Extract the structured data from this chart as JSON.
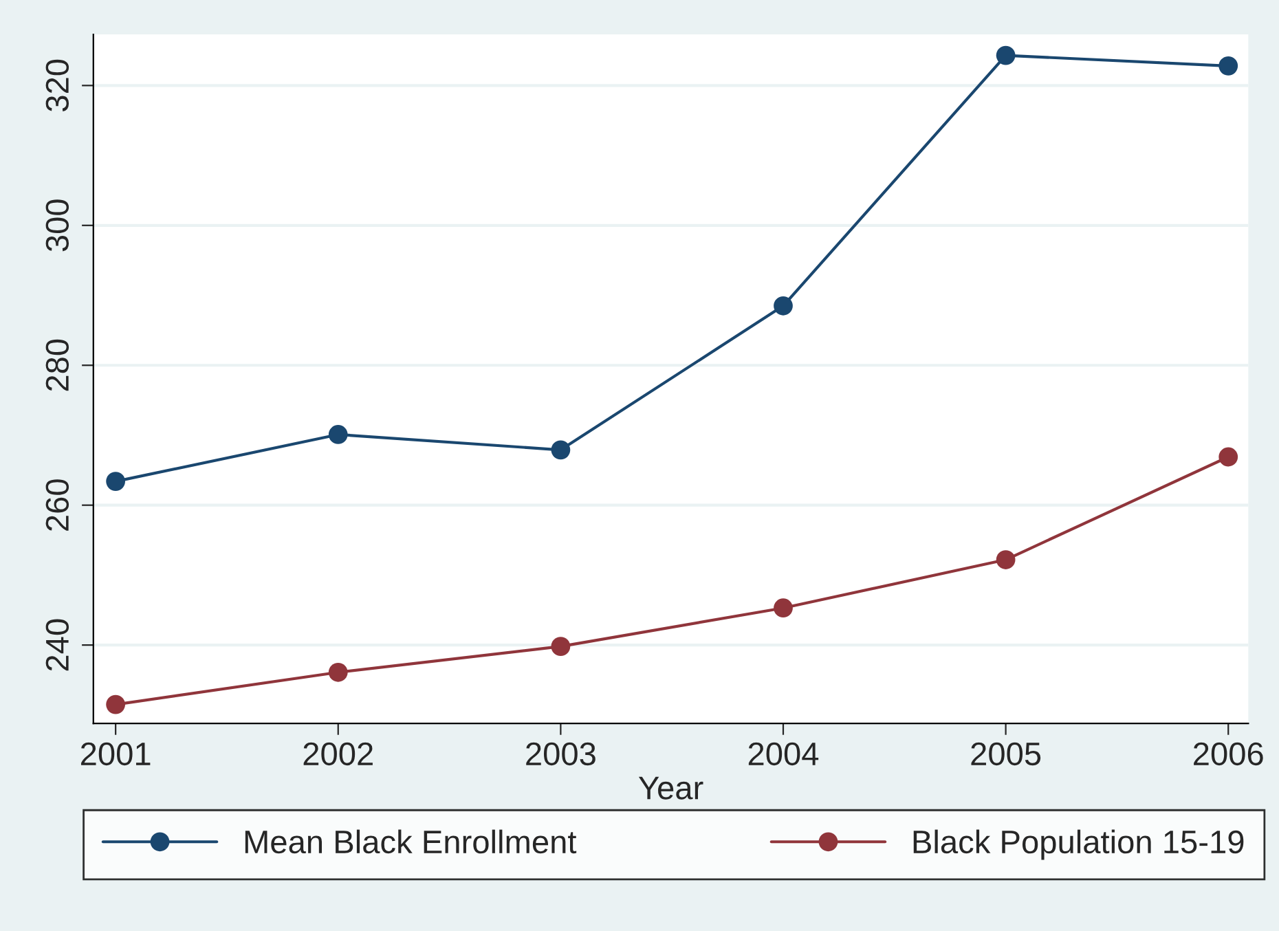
{
  "chart_data": {
    "type": "line",
    "xlabel": "Year",
    "x": [
      2001,
      2002,
      2003,
      2004,
      2005,
      2006
    ],
    "series": [
      {
        "name": "Mean Black Enrollment",
        "color": "#1a476f",
        "values": [
          263.4,
          270.1,
          267.9,
          288.5,
          324.3,
          322.8
        ]
      },
      {
        "name": "Black Population 15-19",
        "color": "#90353b",
        "values": [
          231.5,
          236.1,
          239.8,
          245.3,
          252.2,
          266.9
        ]
      }
    ],
    "xlim": [
      2000.9,
      2006.09
    ],
    "xticks": [
      2001,
      2002,
      2003,
      2004,
      2005,
      2006
    ],
    "ylim": [
      228.8,
      327.3
    ],
    "yticks": [
      240,
      260,
      280,
      300,
      320
    ],
    "grid": "y",
    "legend": "bottom",
    "marker": "circle",
    "line_style": "solid"
  }
}
